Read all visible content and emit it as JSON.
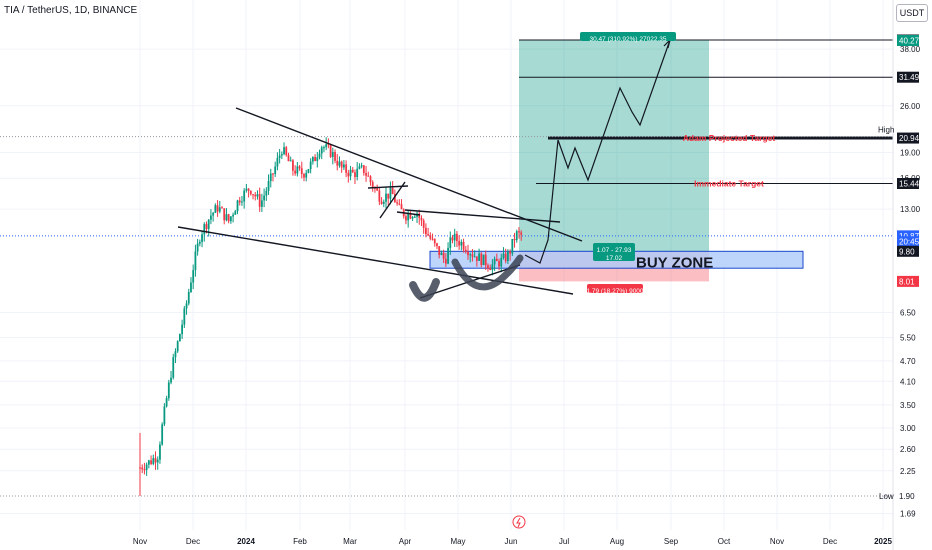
{
  "header": {
    "symbol_line": "TIA / TetherUS, 1D, BINANCE",
    "currency": "USDT"
  },
  "colors": {
    "bull": "#089981",
    "bear": "#f23645",
    "target_green": "#089981",
    "stop_red": "#f23645",
    "buy_zone_fill": "#aecbfa",
    "label_red": "#f23645"
  },
  "chart_data": {
    "type": "candlestick",
    "scale": "log",
    "xlabel": "",
    "ylabel": "",
    "x_ticks": [
      "Nov",
      "Dec",
      "2024",
      "Feb",
      "Mar",
      "Apr",
      "May",
      "Jun",
      "Jul",
      "Aug",
      "Sep",
      "Oct",
      "Nov",
      "Dec",
      "2025"
    ],
    "y_ticks": [
      1.69,
      2.25,
      2.6,
      3.0,
      3.5,
      4.1,
      4.7,
      5.5,
      6.5,
      13.0,
      16.0,
      19.0,
      26.0,
      38.0
    ],
    "y_range": [
      1.6,
      48.0
    ],
    "price_labels": [
      {
        "text": "40.41",
        "value": 40.41,
        "style": "black"
      },
      {
        "text": "40.27",
        "value": 40.27,
        "style": "green"
      },
      {
        "text": "31.49",
        "value": 31.49,
        "style": "black"
      },
      {
        "text": "21.14",
        "value": 21.14,
        "style": "plain"
      },
      {
        "text": "20.94",
        "value": 20.94,
        "style": "black"
      },
      {
        "text": "15.44",
        "value": 15.44,
        "style": "black"
      },
      {
        "text": "10.87",
        "value": 10.87,
        "style": "blue"
      },
      {
        "text": "20:45:53",
        "value": 10.45,
        "style": "blue"
      },
      {
        "text": "9.80",
        "value": 9.8,
        "style": "black"
      },
      {
        "text": "8.01",
        "value": 8.01,
        "style": "red"
      },
      {
        "text": "1.90",
        "value": 1.9,
        "style": "plain"
      }
    ],
    "high_label": "High",
    "low_label": "Low",
    "high_value": 21.14,
    "low_value": 1.9,
    "current_price": 10.87,
    "candles_summary": [
      {
        "month": "Nov",
        "close": 2.4
      },
      {
        "month": "Dec",
        "close": 13.0
      },
      {
        "month": "Jan",
        "close": 16.0
      },
      {
        "month": "Feb",
        "close": 18.5
      },
      {
        "month": "Mar",
        "close": 13.0
      },
      {
        "month": "Apr",
        "close": 10.5
      },
      {
        "month": "May",
        "close": 9.6
      },
      {
        "month": "Jun",
        "close": 10.87
      }
    ],
    "targets": [
      {
        "label": "Adam Projected Target",
        "value": 20.94
      },
      {
        "label": "Immediate Target",
        "value": 15.44
      },
      {
        "label": "",
        "value": 31.49
      },
      {
        "label": "",
        "value": 40.41
      }
    ],
    "position": {
      "entry": 9.8,
      "target": 40.27,
      "stop": 8.01,
      "target_label": "30.47 (310.92%) 27022.35",
      "entry_label_line1": "1.07 - 27.93",
      "entry_label_line2": "17.02",
      "stop_label": "1.79 (18.27%) 9000"
    },
    "buy_zone": {
      "label": "BUY ZONE",
      "low": 8.75,
      "high": 9.8
    }
  }
}
